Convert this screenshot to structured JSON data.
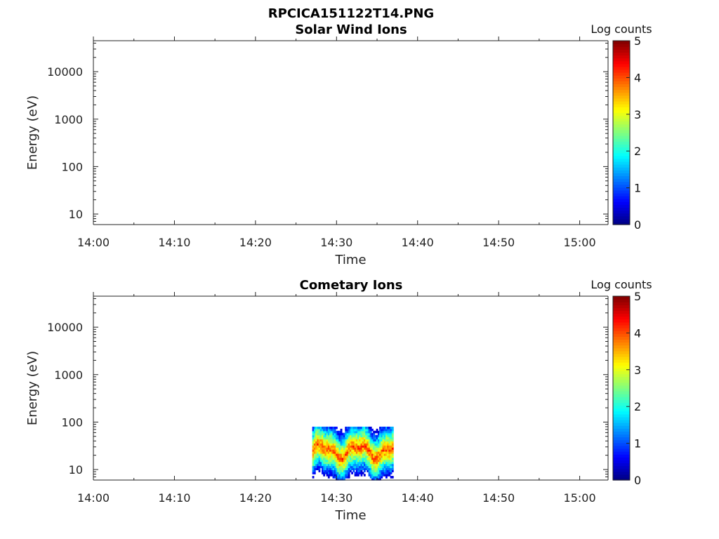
{
  "chart_data": {
    "figure_title": "RPCICA151122T14.PNG",
    "panels": [
      {
        "type": "heatmap",
        "title": "Solar Wind Ions",
        "xlabel": "Time",
        "ylabel": "Energy (eV)",
        "x_ticks": [
          "14:00",
          "14:10",
          "14:20",
          "14:30",
          "14:40",
          "14:50",
          "15:00"
        ],
        "x_range_minutes_after_14": [
          0,
          63.5
        ],
        "y_scale": "log",
        "y_ticks": [
          10,
          100,
          1000,
          10000
        ],
        "y_range": [
          6,
          45000
        ],
        "colorbar": {
          "label": "Log counts",
          "ticks": [
            0,
            1,
            2,
            3,
            4,
            5
          ],
          "range": [
            0,
            5
          ],
          "colormap": "jet"
        },
        "data": []
      },
      {
        "type": "heatmap",
        "title": "Cometary Ions",
        "xlabel": "Time",
        "ylabel": "Energy (eV)",
        "x_ticks": [
          "14:00",
          "14:10",
          "14:20",
          "14:30",
          "14:40",
          "14:50",
          "15:00"
        ],
        "x_range_minutes_after_14": [
          0,
          63.5
        ],
        "y_scale": "log",
        "y_ticks": [
          10,
          100,
          1000,
          10000
        ],
        "y_range": [
          6,
          45000
        ],
        "colorbar": {
          "label": "Log counts",
          "ticks": [
            0,
            1,
            2,
            3,
            4,
            5
          ],
          "range": [
            0,
            5
          ],
          "colormap": "jet"
        },
        "data": [
          {
            "time_start": "14:27",
            "time_end": "14:37",
            "energy_min_eV": 6,
            "energy_max_eV": 80,
            "peak_energy_eV": 25,
            "peak_log_counts": 4.0
          }
        ]
      }
    ]
  }
}
